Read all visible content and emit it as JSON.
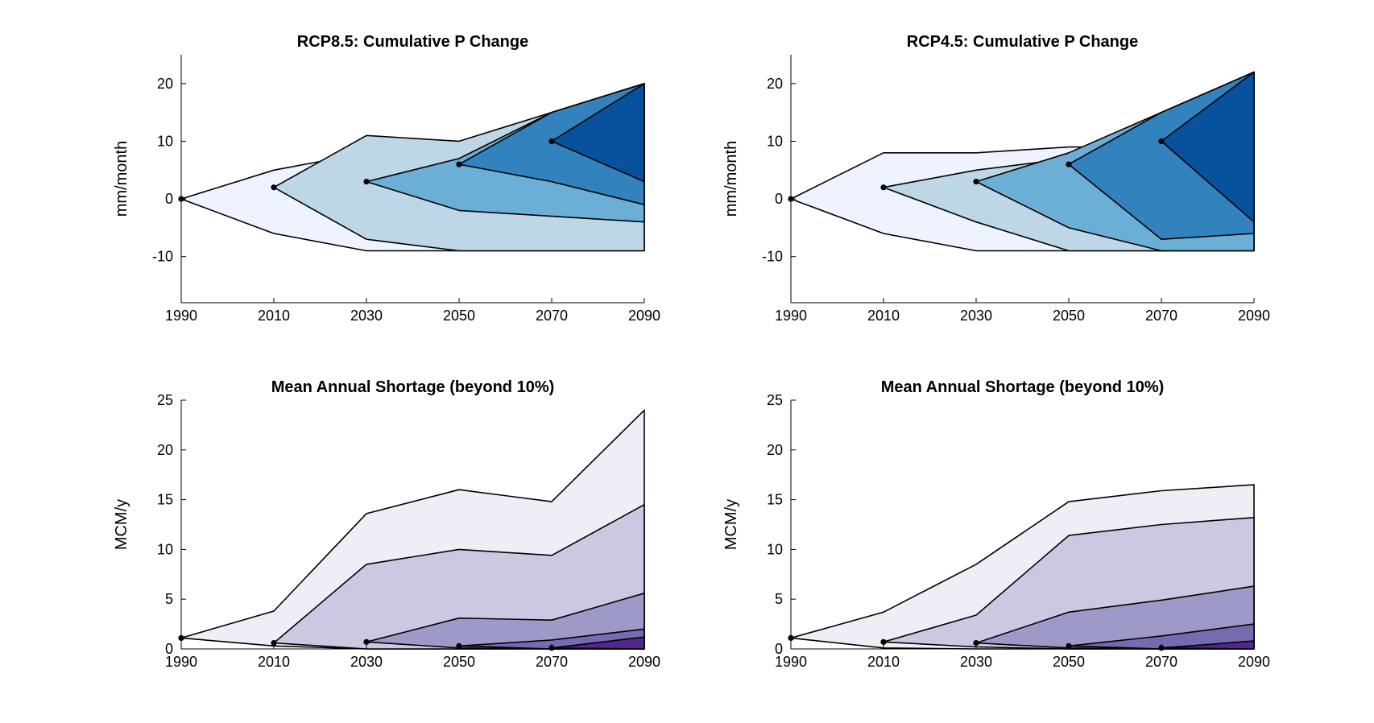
{
  "chart_data": [
    {
      "type": "area",
      "title": "RCP8.5: Cumulative P Change",
      "xlabel": "",
      "ylabel": "mm/month",
      "x_ticks": [
        "1990",
        "2010",
        "2030",
        "2050",
        "2070",
        "2090"
      ],
      "y_ticks": [
        "-10",
        "0",
        "10",
        "20"
      ],
      "xlim": [
        1990,
        2090
      ],
      "ylim": [
        -18,
        25
      ],
      "grid": false,
      "fans": [
        {
          "color": "#eff3ff",
          "origin": [
            1990,
            0
          ],
          "x": [
            1990,
            2010,
            2030,
            2050,
            2070,
            2090
          ],
          "upper": [
            0,
            5,
            8,
            8,
            8,
            8
          ],
          "lower": [
            0,
            -6,
            -9,
            -9,
            -9,
            -9
          ]
        },
        {
          "color": "#bdd7e7",
          "origin": [
            2010,
            2
          ],
          "x": [
            2010,
            2030,
            2050,
            2070,
            2090
          ],
          "upper": [
            2,
            11,
            10,
            15,
            20
          ],
          "lower": [
            2,
            -7,
            -9,
            -9,
            -9
          ]
        },
        {
          "color": "#6baed6",
          "origin": [
            2030,
            3
          ],
          "x": [
            2030,
            2050,
            2070,
            2090
          ],
          "upper": [
            3,
            7,
            15,
            20
          ],
          "lower": [
            3,
            -2,
            -3,
            -4
          ]
        },
        {
          "color": "#3182bd",
          "origin": [
            2050,
            6
          ],
          "x": [
            2050,
            2070,
            2090
          ],
          "upper": [
            6,
            15,
            20
          ],
          "lower": [
            6,
            3,
            -1
          ]
        },
        {
          "color": "#08519c",
          "origin": [
            2070,
            10
          ],
          "x": [
            2070,
            2090
          ],
          "upper": [
            10,
            20
          ],
          "lower": [
            10,
            3
          ]
        }
      ]
    },
    {
      "type": "area",
      "title": "RCP4.5: Cumulative P Change",
      "xlabel": "",
      "ylabel": "mm/month",
      "x_ticks": [
        "1990",
        "2010",
        "2030",
        "2050",
        "2070",
        "2090"
      ],
      "y_ticks": [
        "-10",
        "0",
        "10",
        "20"
      ],
      "xlim": [
        1990,
        2090
      ],
      "ylim": [
        -18,
        25
      ],
      "grid": false,
      "fans": [
        {
          "color": "#eff3ff",
          "origin": [
            1990,
            0
          ],
          "x": [
            1990,
            2010,
            2030,
            2050,
            2070,
            2090
          ],
          "upper": [
            0,
            8,
            8,
            9,
            9,
            9
          ],
          "lower": [
            0,
            -6,
            -9,
            -9,
            -9,
            -9
          ]
        },
        {
          "color": "#bdd7e7",
          "origin": [
            2010,
            2
          ],
          "x": [
            2010,
            2030,
            2050,
            2070,
            2090
          ],
          "upper": [
            2,
            5,
            7,
            13,
            13
          ],
          "lower": [
            2,
            -4,
            -9,
            -9,
            -9
          ]
        },
        {
          "color": "#6baed6",
          "origin": [
            2030,
            3
          ],
          "x": [
            2030,
            2050,
            2070,
            2090
          ],
          "upper": [
            3,
            8,
            15,
            22
          ],
          "lower": [
            3,
            -5,
            -9,
            -9
          ]
        },
        {
          "color": "#3182bd",
          "origin": [
            2050,
            6
          ],
          "x": [
            2050,
            2070,
            2090
          ],
          "upper": [
            6,
            15,
            22
          ],
          "lower": [
            6,
            -7,
            -6
          ]
        },
        {
          "color": "#08519c",
          "origin": [
            2070,
            10
          ],
          "x": [
            2070,
            2090
          ],
          "upper": [
            10,
            22
          ],
          "lower": [
            10,
            -4
          ]
        }
      ]
    },
    {
      "type": "area",
      "title": "Mean Annual Shortage (beyond 10%)",
      "xlabel": "",
      "ylabel": "MCM/y",
      "x_ticks": [
        "1990",
        "2010",
        "2030",
        "2050",
        "2070",
        "2090"
      ],
      "y_ticks": [
        "0",
        "5",
        "10",
        "15",
        "20",
        "25"
      ],
      "xlim": [
        1990,
        2090
      ],
      "ylim": [
        0,
        25
      ],
      "grid": false,
      "fans": [
        {
          "color": "#efedf5",
          "origin": [
            1990,
            1.1
          ],
          "x": [
            1990,
            2010,
            2030,
            2050,
            2070,
            2090
          ],
          "upper": [
            1.1,
            3.8,
            13.6,
            16.0,
            14.8,
            24.0
          ],
          "lower": [
            1.1,
            0.3,
            0,
            0,
            0,
            0
          ]
        },
        {
          "color": "#cbc9e2",
          "origin": [
            2010,
            0.6
          ],
          "x": [
            2010,
            2030,
            2050,
            2070,
            2090
          ],
          "upper": [
            0.6,
            8.5,
            10.0,
            9.4,
            14.5
          ],
          "lower": [
            0.6,
            0,
            0,
            0,
            0
          ]
        },
        {
          "color": "#9e9ac8",
          "origin": [
            2030,
            0.7
          ],
          "x": [
            2030,
            2050,
            2070,
            2090
          ],
          "upper": [
            0.7,
            3.1,
            2.9,
            5.6
          ],
          "lower": [
            0.7,
            0.1,
            0,
            0
          ]
        },
        {
          "color": "#756bb1",
          "origin": [
            2050,
            0.3
          ],
          "x": [
            2050,
            2070,
            2090
          ],
          "upper": [
            0.3,
            0.9,
            2.0
          ],
          "lower": [
            0.3,
            0,
            0
          ]
        },
        {
          "color": "#54278f",
          "origin": [
            2070,
            0.1
          ],
          "x": [
            2070,
            2090
          ],
          "upper": [
            0.1,
            1.2
          ],
          "lower": [
            0.1,
            0
          ]
        }
      ]
    },
    {
      "type": "area",
      "title": "Mean Annual Shortage (beyond 10%)",
      "xlabel": "",
      "ylabel": "MCM/y",
      "x_ticks": [
        "1990",
        "2010",
        "2030",
        "2050",
        "2070",
        "2090"
      ],
      "y_ticks": [
        "0",
        "5",
        "10",
        "15",
        "20",
        "25"
      ],
      "xlim": [
        1990,
        2090
      ],
      "ylim": [
        0,
        25
      ],
      "grid": false,
      "fans": [
        {
          "color": "#efedf5",
          "origin": [
            1990,
            1.1
          ],
          "x": [
            1990,
            2010,
            2030,
            2050,
            2070,
            2090
          ],
          "upper": [
            1.1,
            3.7,
            8.5,
            14.8,
            15.9,
            16.5
          ],
          "lower": [
            1.1,
            0.1,
            0,
            0,
            0,
            0
          ]
        },
        {
          "color": "#cbc9e2",
          "origin": [
            2010,
            0.7
          ],
          "x": [
            2010,
            2030,
            2050,
            2070,
            2090
          ],
          "upper": [
            0.7,
            3.4,
            11.4,
            12.5,
            13.2
          ],
          "lower": [
            0.7,
            0.2,
            0,
            0,
            0
          ]
        },
        {
          "color": "#9e9ac8",
          "origin": [
            2030,
            0.6
          ],
          "x": [
            2030,
            2050,
            2070,
            2090
          ],
          "upper": [
            0.6,
            3.7,
            4.9,
            6.3
          ],
          "lower": [
            0.6,
            0.1,
            0,
            0
          ]
        },
        {
          "color": "#756bb1",
          "origin": [
            2050,
            0.3
          ],
          "x": [
            2050,
            2070,
            2090
          ],
          "upper": [
            0.3,
            1.3,
            2.5
          ],
          "lower": [
            0.3,
            0,
            0
          ]
        },
        {
          "color": "#54278f",
          "origin": [
            2070,
            0.1
          ],
          "x": [
            2070,
            2090
          ],
          "upper": [
            0.1,
            0.8
          ],
          "lower": [
            0.1,
            0
          ]
        }
      ]
    }
  ]
}
